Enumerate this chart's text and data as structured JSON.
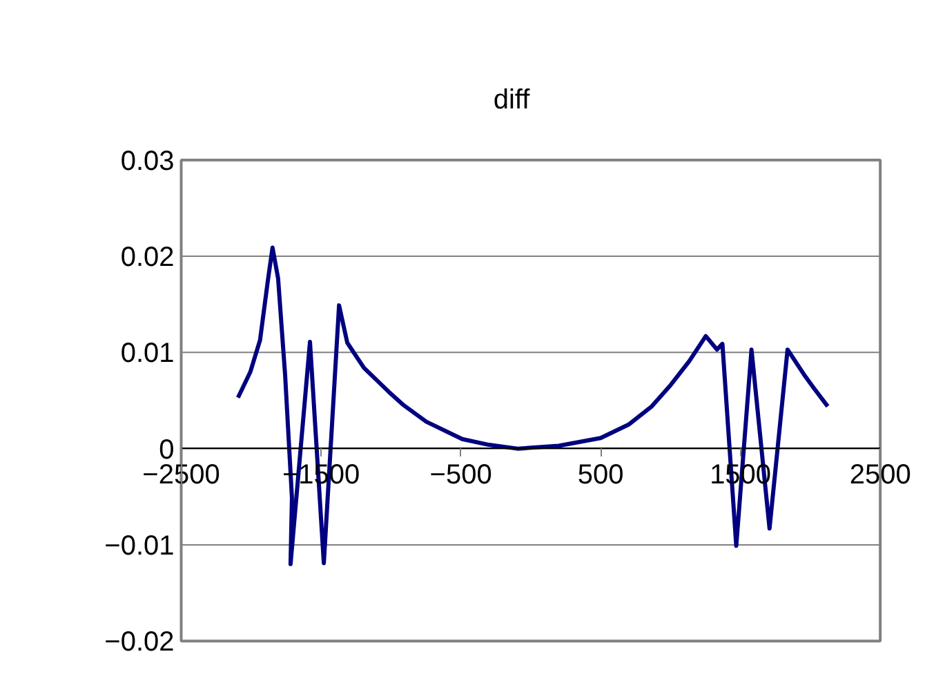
{
  "chart_data": {
    "type": "line",
    "title": "diff",
    "grid": "y",
    "marker": "none",
    "line_style": "solid",
    "xlim": [
      -2500,
      2500
    ],
    "xticks": [
      {
        "value": -2500,
        "label": "−2500"
      },
      {
        "value": -1500,
        "label": "−1500"
      },
      {
        "value": -500,
        "label": "−500"
      },
      500,
      1500,
      2500
    ],
    "ylim": [
      -0.02,
      0.03
    ],
    "yticks": [
      {
        "value": -0.02,
        "label": "−0.02"
      },
      {
        "value": -0.01,
        "label": "−0.01"
      },
      0,
      0.01,
      0.02,
      0.03
    ],
    "series": [
      {
        "color": "#000080",
        "x": [
          -2094,
          -2005,
          -1936,
          -1880,
          -1847,
          -1807,
          -1757,
          -1708,
          -1718,
          -1579,
          -1480,
          -1371,
          -1312,
          -1193,
          -1015,
          -916,
          -747,
          -490,
          -300,
          -94,
          200,
          500,
          700,
          866,
          1000,
          1134,
          1252,
          1332,
          1371,
          1470,
          1579,
          1708,
          1837,
          1955,
          2025,
          2124
        ],
        "values": [
          0.0053,
          0.008,
          0.0113,
          0.0175,
          0.0209,
          0.0177,
          0.0077,
          -0.0051,
          -0.012,
          0.0111,
          -0.0119,
          0.0149,
          0.011,
          0.0084,
          0.0059,
          0.0046,
          0.0028,
          0.001,
          0.0004,
          0.0,
          0.0003,
          0.0011,
          0.0025,
          0.0044,
          0.0066,
          0.0091,
          0.0117,
          0.0103,
          0.0109,
          -0.0101,
          0.0103,
          -0.0083,
          0.0103,
          0.0077,
          0.0063,
          0.0044
        ]
      }
    ]
  }
}
